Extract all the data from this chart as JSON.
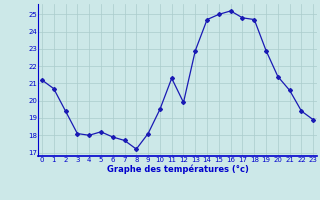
{
  "hours": [
    0,
    1,
    2,
    3,
    4,
    5,
    6,
    7,
    8,
    9,
    10,
    11,
    12,
    13,
    14,
    15,
    16,
    17,
    18,
    19,
    20,
    21,
    22,
    23
  ],
  "temps": [
    21.2,
    20.7,
    19.4,
    18.1,
    18.0,
    18.2,
    17.9,
    17.7,
    17.2,
    18.1,
    19.5,
    21.3,
    19.9,
    22.9,
    24.7,
    25.0,
    25.2,
    24.8,
    24.7,
    22.9,
    21.4,
    20.6,
    19.4,
    18.9
  ],
  "line_color": "#1a1ab4",
  "marker": "D",
  "marker_size": 2.0,
  "bg_color": "#cce8e8",
  "grid_color": "#aacccc",
  "axis_label_color": "#0000cc",
  "tick_color": "#0000cc",
  "xlabel": "Graphe des températures (°c)",
  "ylim": [
    16.8,
    25.6
  ],
  "yticks": [
    17,
    18,
    19,
    20,
    21,
    22,
    23,
    24,
    25
  ],
  "xlabel_fontsize": 6.0,
  "tick_fontsize": 5.0
}
